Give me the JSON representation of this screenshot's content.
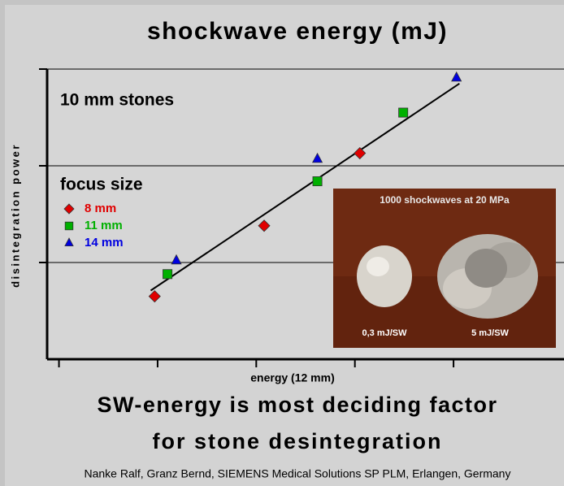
{
  "chart_data": {
    "type": "scatter",
    "title": "shockwave energy (mJ)",
    "ylabel": "disintegration power",
    "xlabel": "energy (12 mm)",
    "annotation": "10 mm stones",
    "legend_title": "focus size",
    "xlim": [
      -0.12,
      5.12
    ],
    "xticks": [
      0,
      1,
      2,
      3,
      4
    ],
    "ylim": [
      0,
      3
    ],
    "yticks": [
      1,
      2,
      3
    ],
    "grid": true,
    "series": [
      {
        "name": "8 mm",
        "color": "#e00000",
        "marker": "diamond",
        "x": [
          0.97,
          2.08,
          3.05
        ],
        "values": [
          0.65,
          1.38,
          2.13
        ]
      },
      {
        "name": "11 mm",
        "color": "#00b000",
        "marker": "square",
        "x": [
          1.1,
          2.62,
          3.49
        ],
        "values": [
          0.88,
          1.84,
          2.55
        ]
      },
      {
        "name": "14 mm",
        "color": "#0000e0",
        "marker": "triangle",
        "x": [
          1.19,
          2.62,
          4.03
        ],
        "values": [
          1.02,
          2.07,
          2.91
        ]
      }
    ],
    "trendline": {
      "x": [
        0.93,
        4.06
      ],
      "y": [
        0.71,
        2.85
      ]
    }
  },
  "inset": {
    "caption": "1000 shockwaves at 20 MPa",
    "left_label": "0,3 mJ/SW",
    "right_label": "5 mJ/SW"
  },
  "footer": {
    "line1": "SW-energy is most deciding factor",
    "line2": "for stone desintegration",
    "credit": "Nanke Ralf, Granz Bernd, SIEMENS Medical Solutions SP PLM, Erlangen, Germany"
  }
}
